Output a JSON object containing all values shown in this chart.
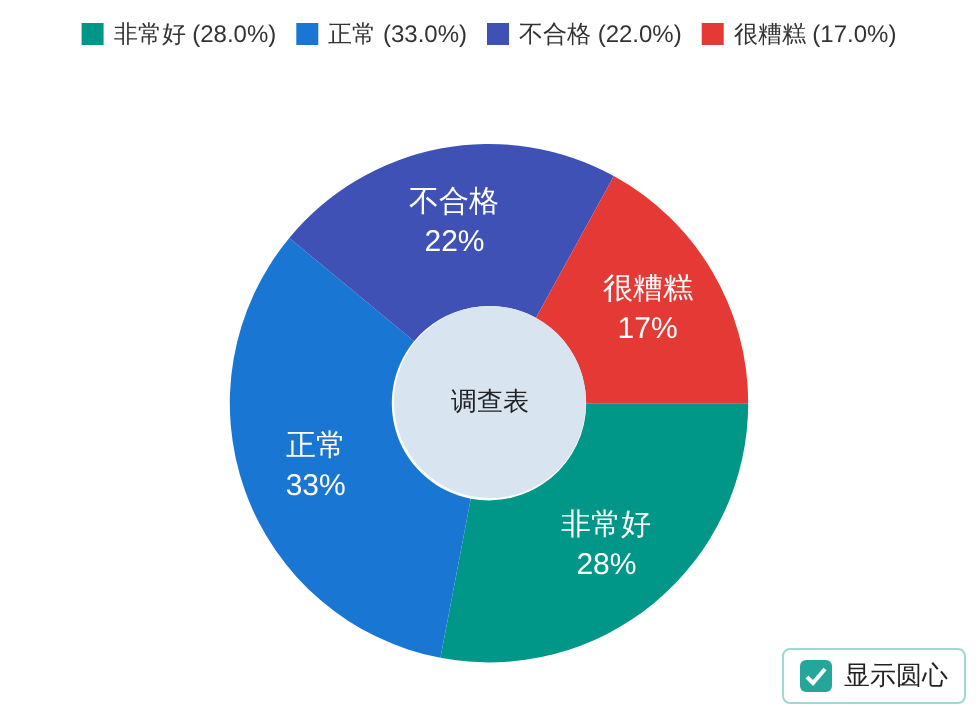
{
  "chart_data": {
    "type": "donut",
    "title": "调查表",
    "categories": [
      "非常好 (28.0%)",
      "正常 (33.0%)",
      "不合格 (22.0%)",
      "很糟糕 (17.0%)"
    ],
    "values": [
      28,
      33,
      22,
      17
    ],
    "value_labels": [
      "非常好\n28%",
      "正常\n33%",
      "不合格\n22%",
      "很糟糕\n17%"
    ],
    "colors": [
      "#009688",
      "#1976d2",
      "#3f51b5",
      "#e53935"
    ],
    "legend": "top",
    "annotations": [
      "显示圆心"
    ]
  }
}
